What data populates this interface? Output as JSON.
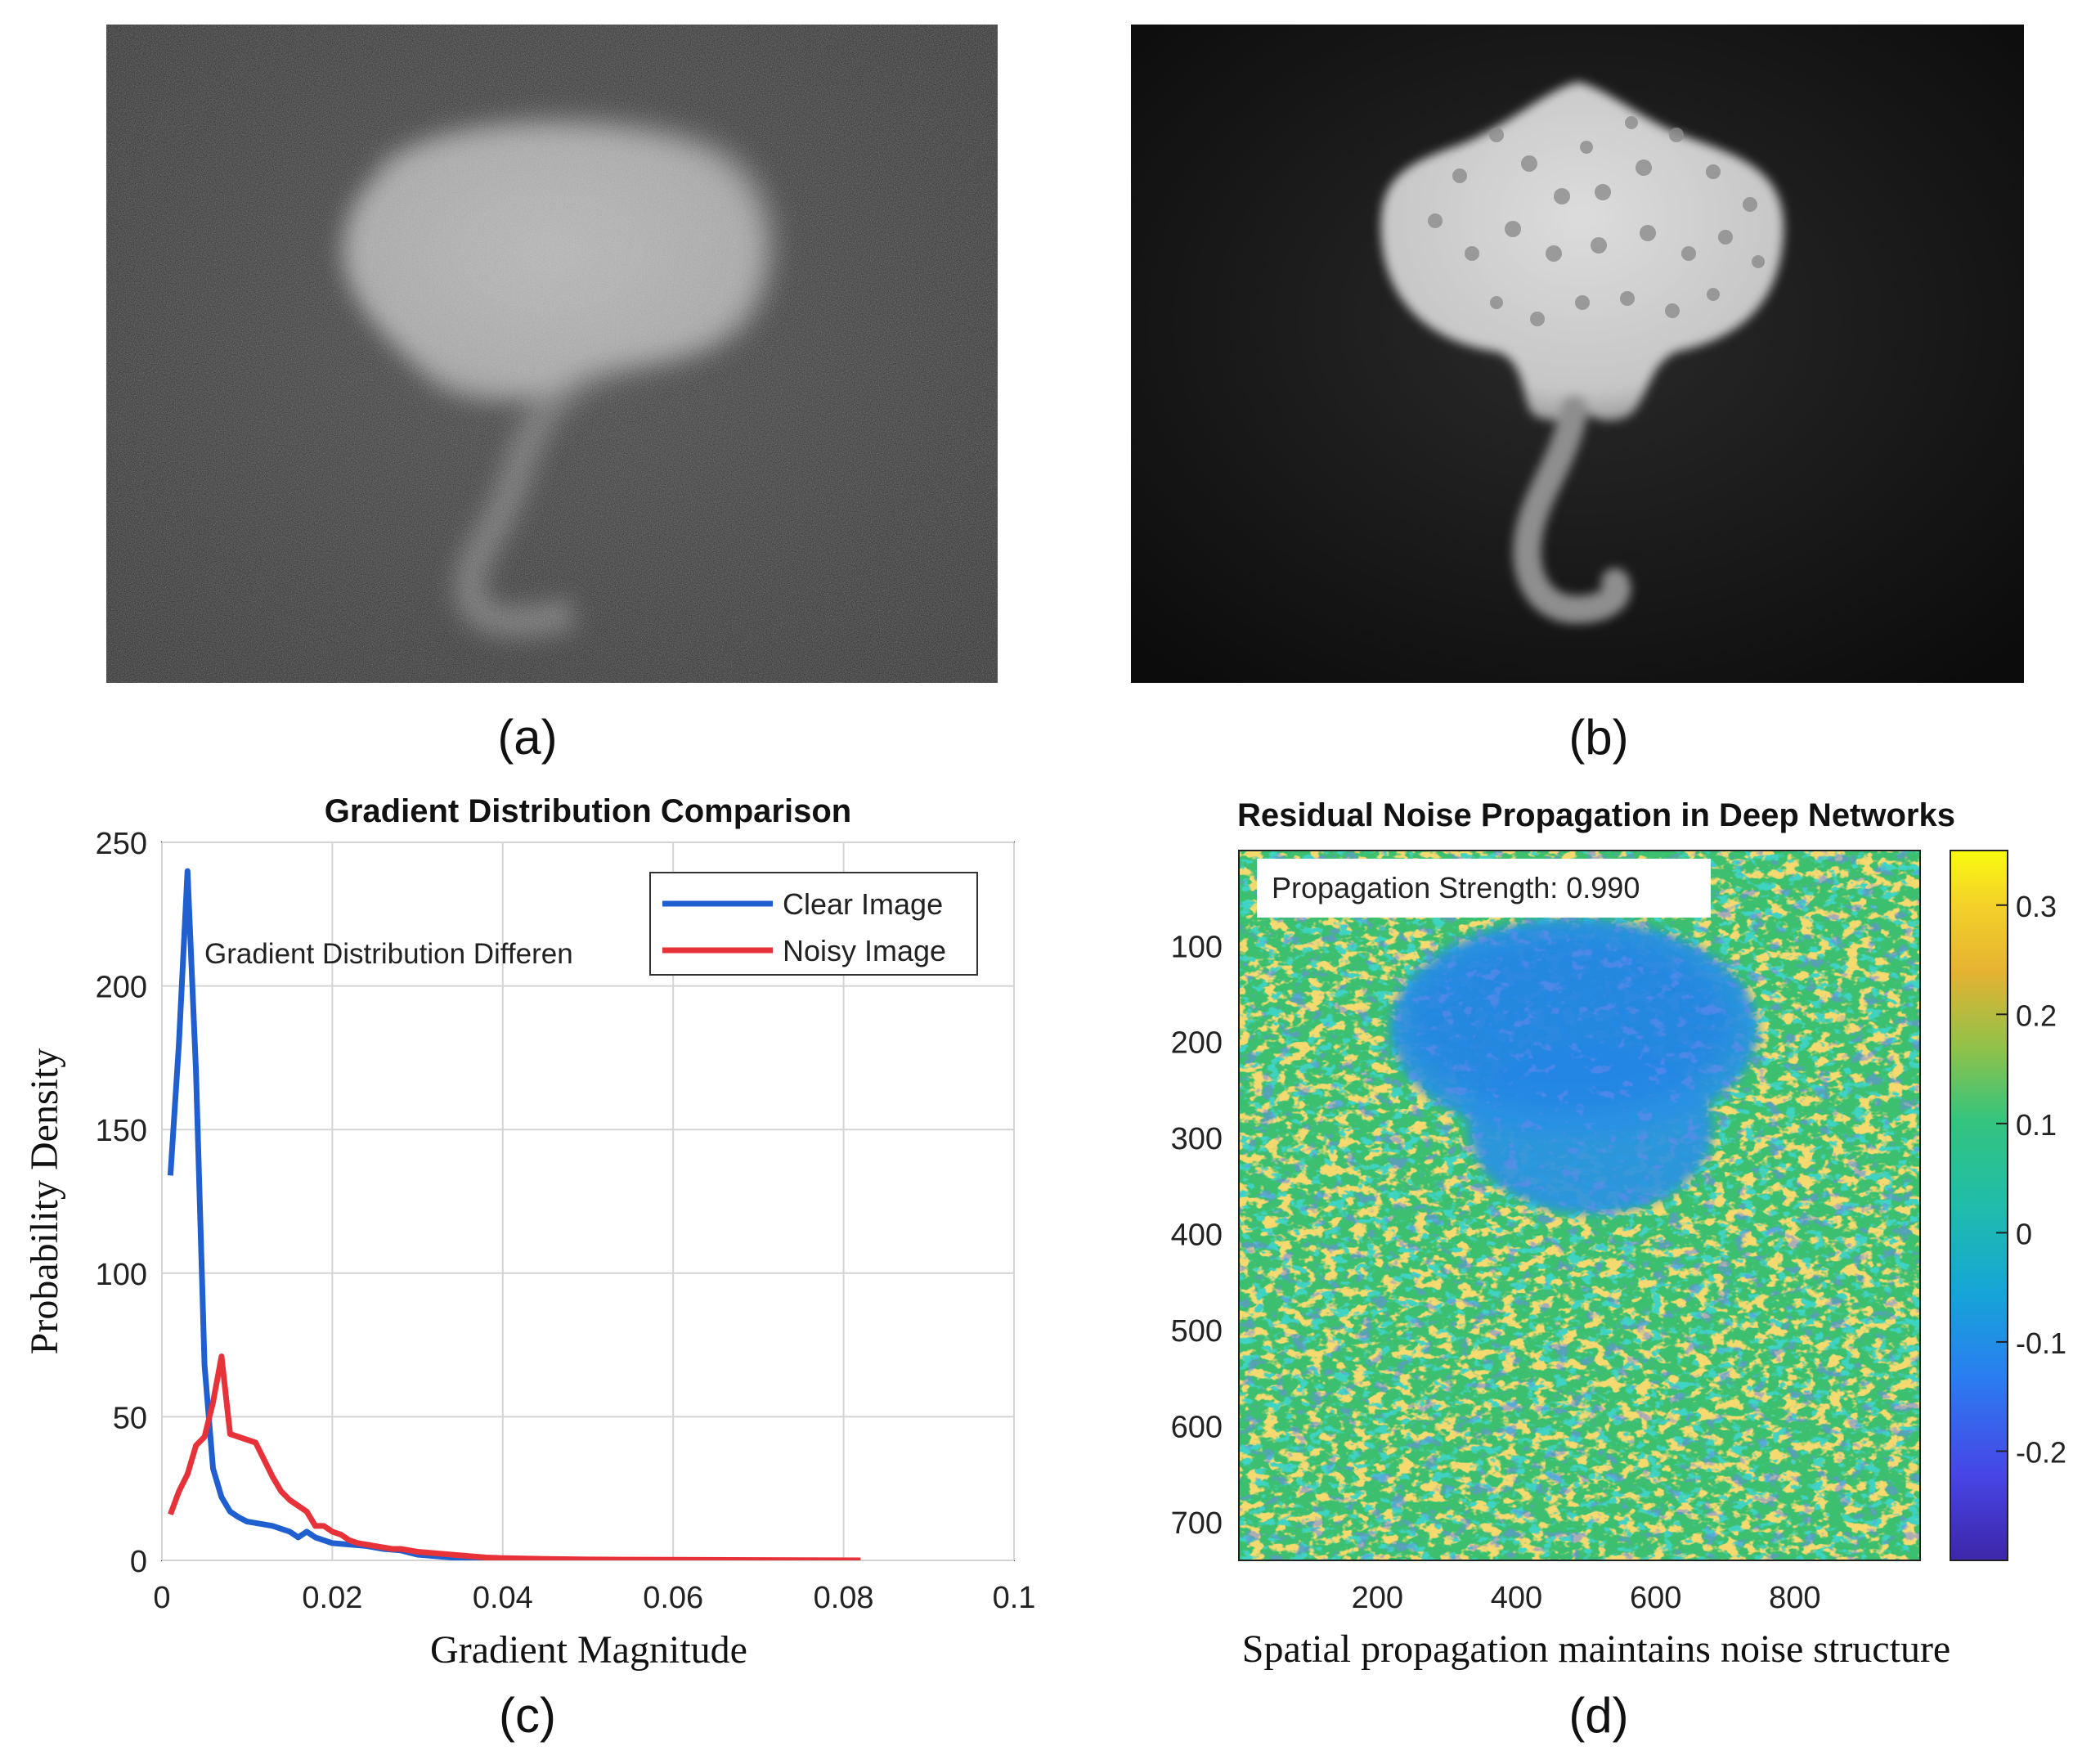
{
  "panels": {
    "a": {
      "label": "(a)"
    },
    "b": {
      "label": "(b)"
    },
    "c": {
      "label": "(c)"
    },
    "d": {
      "label": "(d)"
    }
  },
  "chart_data": [
    {
      "type": "line",
      "title": "Gradient Distribution Comparison",
      "xlabel": "Gradient Magnitude",
      "ylabel": "Probability Density",
      "xlim": [
        0,
        0.1
      ],
      "ylim": [
        0,
        250
      ],
      "xticks": [
        0,
        0.02,
        0.04,
        0.06,
        0.08,
        0.1
      ],
      "xtick_labels": [
        "0",
        "0.02",
        "0.04",
        "0.06",
        "0.08",
        "0.1"
      ],
      "yticks": [
        0,
        50,
        100,
        150,
        200,
        250
      ],
      "ytick_labels": [
        "0",
        "50",
        "100",
        "150",
        "200",
        "250"
      ],
      "grid": true,
      "legend_position": "top-right",
      "annotation": "Gradient Distribution Differen",
      "series": [
        {
          "name": "Clear Image",
          "color": "#1f5fd0",
          "x": [
            0.001,
            0.002,
            0.003,
            0.004,
            0.005,
            0.006,
            0.007,
            0.008,
            0.009,
            0.01,
            0.011,
            0.012,
            0.013,
            0.014,
            0.015,
            0.016,
            0.017,
            0.018,
            0.019,
            0.02,
            0.022,
            0.024,
            0.026,
            0.028,
            0.03,
            0.032,
            0.034,
            0.036,
            0.038,
            0.04,
            0.042,
            0.045,
            0.05
          ],
          "y": [
            134,
            180,
            240,
            170,
            68,
            32,
            22,
            17,
            15,
            13.5,
            13,
            12.5,
            12,
            11,
            10,
            8,
            10,
            8,
            7,
            6,
            5.5,
            5,
            4,
            3.5,
            2,
            1.5,
            1,
            0.8,
            0.5,
            0.3,
            0.2,
            0.1,
            0
          ]
        },
        {
          "name": "Noisy Image",
          "color": "#e8323a",
          "x": [
            0.001,
            0.002,
            0.003,
            0.004,
            0.005,
            0.006,
            0.007,
            0.008,
            0.009,
            0.01,
            0.011,
            0.012,
            0.013,
            0.014,
            0.015,
            0.016,
            0.017,
            0.018,
            0.019,
            0.02,
            0.021,
            0.022,
            0.023,
            0.024,
            0.025,
            0.026,
            0.027,
            0.028,
            0.029,
            0.03,
            0.032,
            0.034,
            0.036,
            0.038,
            0.04,
            0.045,
            0.05,
            0.06,
            0.07,
            0.082
          ],
          "y": [
            16,
            24,
            30,
            40,
            43,
            55,
            71,
            44,
            43,
            42,
            41,
            35,
            29,
            24,
            21,
            19,
            17,
            12,
            12,
            10,
            9,
            7,
            6,
            5.5,
            5,
            4.5,
            4,
            4,
            3.5,
            3,
            2.5,
            2,
            1.5,
            1,
            0.8,
            0.5,
            0.3,
            0.2,
            0.1,
            0
          ]
        }
      ]
    },
    {
      "type": "heatmap",
      "title": "Residual Noise Propagation in Deep Networks",
      "xlabel": "Spatial propagation maintains noise structure",
      "xlim": [
        1,
        980
      ],
      "ylim": [
        1,
        740
      ],
      "xticks": [
        200,
        400,
        600,
        800
      ],
      "xtick_labels": [
        "200",
        "400",
        "600",
        "800"
      ],
      "yticks": [
        100,
        200,
        300,
        400,
        500,
        600,
        700
      ],
      "ytick_labels": [
        "100",
        "200",
        "300",
        "400",
        "500",
        "600",
        "700"
      ],
      "annotation": "Propagation Strength: 0.990",
      "colorbar": {
        "range": [
          -0.3,
          0.35
        ],
        "ticks": [
          -0.2,
          -0.1,
          0,
          0.1,
          0.2,
          0.3
        ],
        "tick_labels": [
          "-0.2",
          "-0.1",
          "0",
          "0.1",
          "0.2",
          "0.3"
        ]
      }
    }
  ]
}
